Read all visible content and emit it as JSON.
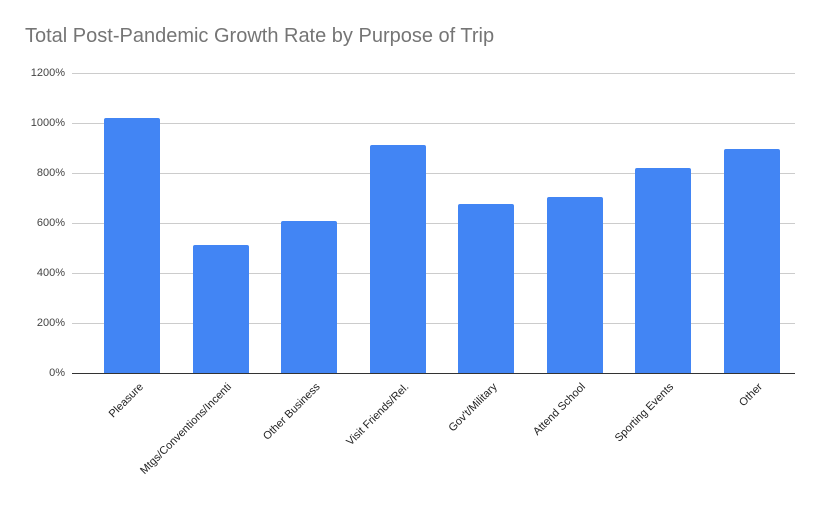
{
  "chart_data": {
    "type": "bar",
    "title": "Total Post-Pandemic Growth Rate by Purpose of Trip",
    "xlabel": "",
    "ylabel": "",
    "categories": [
      "Pleasure",
      "Mtgs/Conventions/Incenti",
      "Other Business",
      "Visit Friends/Rel.",
      "Gov't/Military",
      "Attend School",
      "Sporting Events",
      "Other"
    ],
    "values": [
      1020,
      512,
      608,
      912,
      676,
      704,
      820,
      896
    ],
    "value_unit": "%",
    "ylim": [
      0,
      1200
    ],
    "yticks": [
      "0%",
      "200%",
      "400%",
      "600%",
      "800%",
      "1000%",
      "1200%"
    ],
    "grid": true,
    "legend": null,
    "bar_color": "#4285f4"
  }
}
